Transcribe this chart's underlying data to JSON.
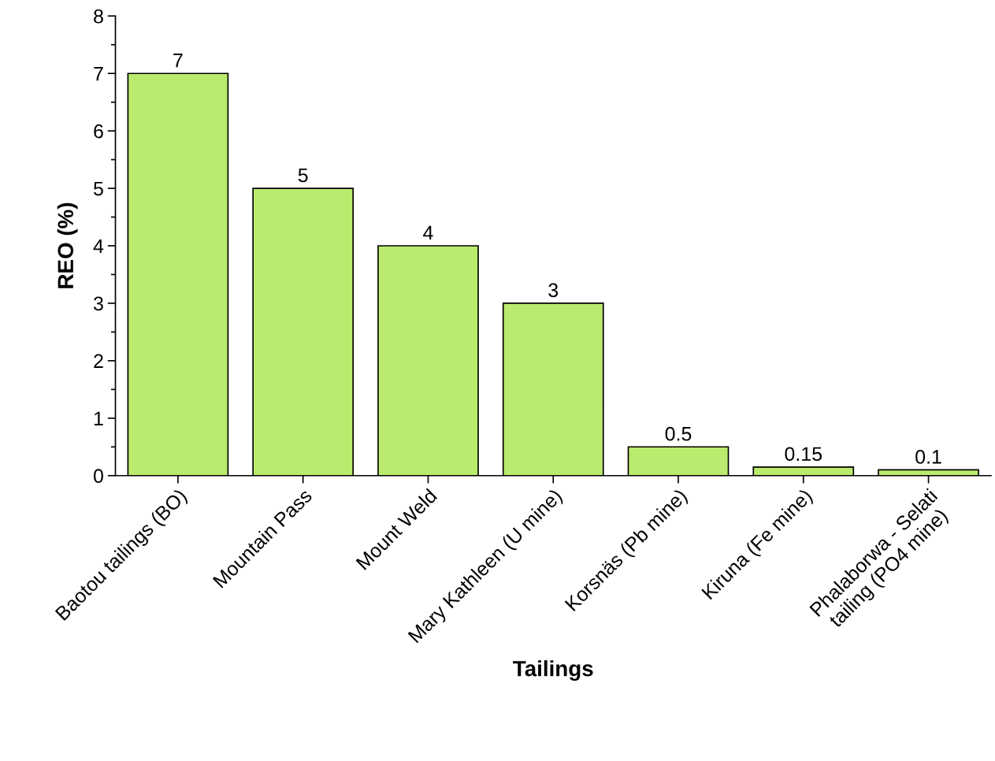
{
  "chart_data": {
    "type": "bar",
    "xlabel": "Tailings",
    "ylabel": "REO (%)",
    "categories": [
      "Baotou tailings (BO)",
      "Mountain Pass",
      "Mount Weld",
      "Mary Kathleen (U mine)",
      "Korsnäs (Pb mine)",
      "Kiruna (Fe mine)",
      "Phalaborwa - Selati\ntailing (PO4 mine)"
    ],
    "values": [
      7,
      5,
      4,
      3,
      0.5,
      0.15,
      0.1
    ],
    "color": "#bbeb6e",
    "ylim": [
      0,
      8
    ],
    "yticks": [
      0,
      1,
      2,
      3,
      4,
      5,
      6,
      7,
      8
    ],
    "data_labels": true
  }
}
